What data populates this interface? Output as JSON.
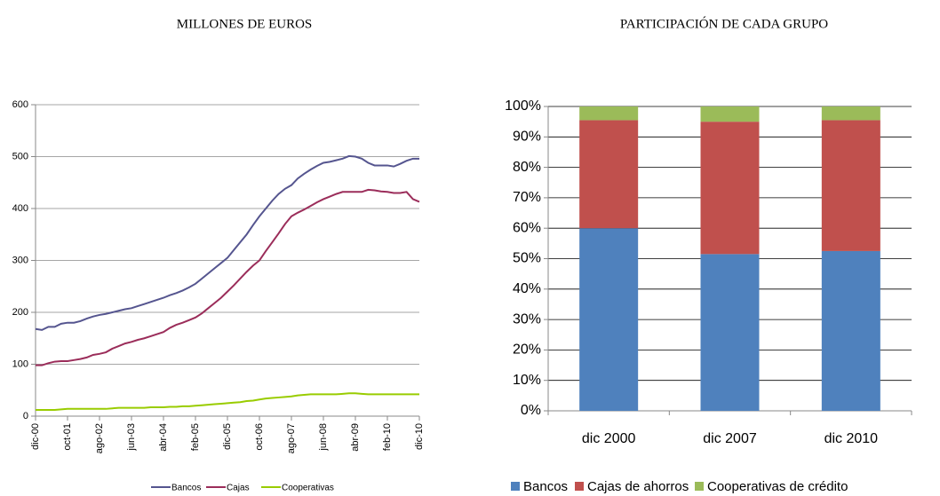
{
  "chart_data": [
    {
      "type": "line",
      "title": "MILLONES DE EUROS",
      "categories": [
        "dic-00",
        null,
        null,
        null,
        null,
        "oct-01",
        null,
        null,
        null,
        null,
        "ago-02",
        null,
        null,
        null,
        null,
        "jun-03",
        null,
        null,
        null,
        null,
        "abr-04",
        null,
        null,
        null,
        null,
        "feb-05",
        null,
        null,
        null,
        null,
        "dic-05",
        null,
        null,
        null,
        null,
        "oct-06",
        null,
        null,
        null,
        null,
        "ago-07",
        null,
        null,
        null,
        null,
        "jun-08",
        null,
        null,
        null,
        null,
        "abr-09",
        null,
        null,
        null,
        null,
        "feb-10",
        null,
        null,
        null,
        null,
        "dic-10"
      ],
      "series": [
        {
          "name": "Bancos",
          "color": "#55558f",
          "values": [
            168,
            166,
            172,
            172,
            178,
            180,
            180,
            183,
            188,
            192,
            195,
            197,
            200,
            203,
            206,
            208,
            212,
            216,
            220,
            224,
            228,
            233,
            237,
            242,
            248,
            255,
            265,
            275,
            285,
            295,
            305,
            320,
            335,
            350,
            368,
            385,
            400,
            415,
            428,
            438,
            445,
            458,
            467,
            475,
            482,
            488,
            490,
            493,
            496,
            501,
            500,
            496,
            488,
            483,
            483,
            483,
            481,
            486,
            492,
            496,
            496
          ]
        },
        {
          "name": "Cajas",
          "color": "#9b2d5a",
          "values": [
            98,
            98,
            102,
            105,
            106,
            106,
            108,
            110,
            113,
            118,
            120,
            123,
            130,
            135,
            140,
            143,
            147,
            150,
            154,
            158,
            162,
            170,
            176,
            180,
            185,
            190,
            198,
            208,
            218,
            228,
            240,
            252,
            265,
            278,
            290,
            300,
            318,
            335,
            352,
            370,
            385,
            392,
            398,
            405,
            412,
            418,
            423,
            428,
            432,
            432,
            432,
            432,
            436,
            435,
            433,
            432,
            430,
            430,
            432,
            418,
            413
          ]
        },
        {
          "name": "Cooperativas",
          "color": "#99cc00",
          "values": [
            12,
            12,
            12,
            12,
            13,
            14,
            14,
            14,
            14,
            14,
            14,
            14,
            15,
            16,
            16,
            16,
            16,
            16,
            17,
            17,
            17,
            18,
            18,
            19,
            19,
            20,
            21,
            22,
            23,
            24,
            25,
            26,
            27,
            29,
            30,
            32,
            34,
            35,
            36,
            37,
            38,
            40,
            41,
            42,
            42,
            42,
            42,
            42,
            43,
            44,
            44,
            43,
            42,
            42,
            42,
            42,
            42,
            42,
            42,
            42,
            42
          ]
        }
      ],
      "ylim": [
        0,
        600
      ],
      "yticks": [
        0,
        100,
        200,
        300,
        400,
        500,
        600
      ],
      "grid": true
    },
    {
      "type": "stacked-bar",
      "title": "PARTICIPACIÓN DE CADA GRUPO",
      "categories": [
        "dic 2000",
        "dic 2007",
        "dic 2010"
      ],
      "series": [
        {
          "name": "Bancos",
          "color": "#4f81bd",
          "values": [
            60,
            51.5,
            52.5
          ]
        },
        {
          "name": "Cajas de ahorros",
          "color": "#c0504d",
          "values": [
            35.5,
            43.5,
            43
          ]
        },
        {
          "name": "Cooperativas de crédito",
          "color": "#9bbb59",
          "values": [
            4.5,
            5,
            4.5
          ]
        }
      ],
      "ylim": [
        0,
        100
      ],
      "yticks": [
        {
          "value": 0,
          "label": "0%"
        },
        {
          "value": 10,
          "label": "10%"
        },
        {
          "value": 20,
          "label": "20%"
        },
        {
          "value": 30,
          "label": "30%"
        },
        {
          "value": 40,
          "label": "40%"
        },
        {
          "value": 50,
          "label": "50%"
        },
        {
          "value": 60,
          "label": "60%"
        },
        {
          "value": 70,
          "label": "70%"
        },
        {
          "value": 80,
          "label": "80%"
        },
        {
          "value": 90,
          "label": "90%"
        },
        {
          "value": 100,
          "label": "100%"
        }
      ],
      "grid": true
    }
  ]
}
